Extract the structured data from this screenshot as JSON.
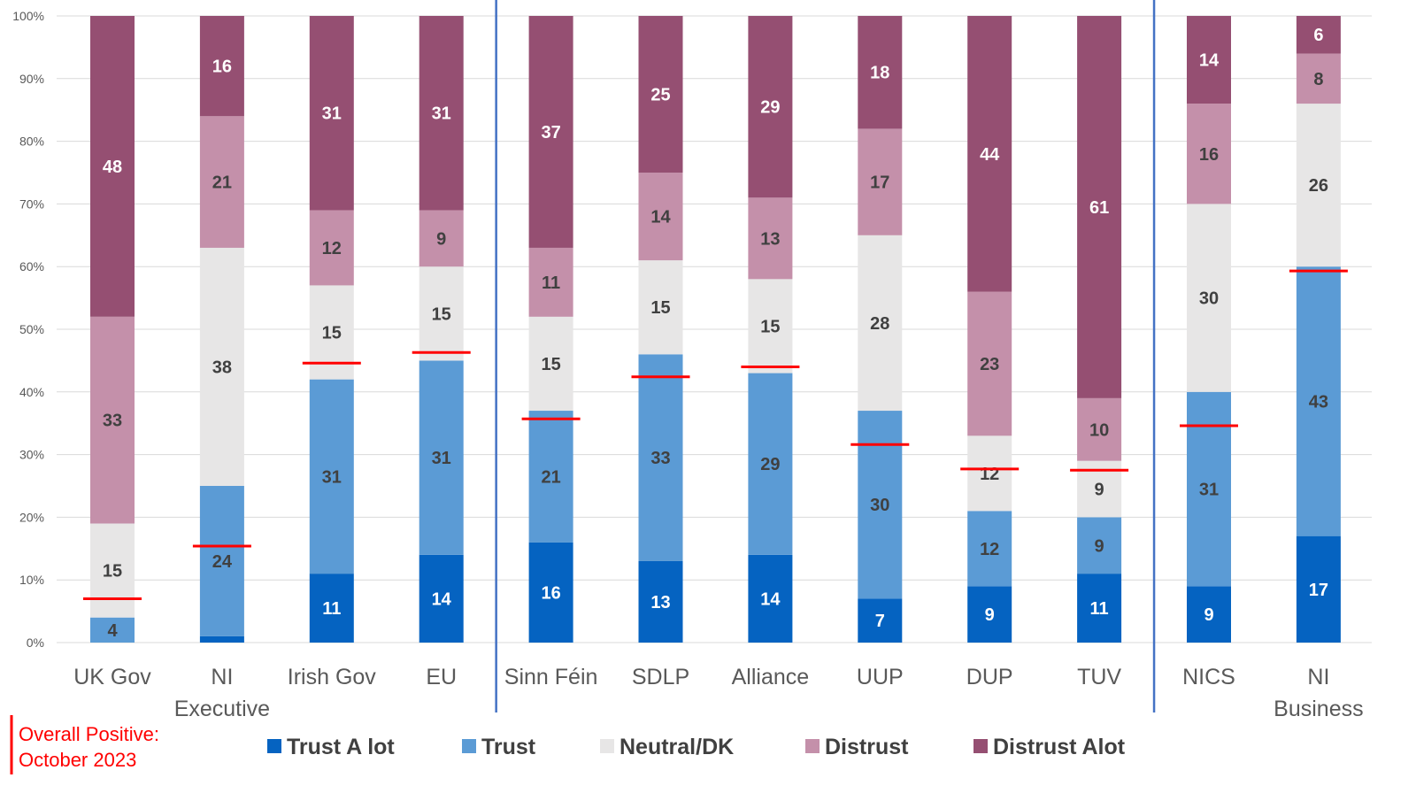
{
  "chart_data": {
    "type": "stacked-bar-100",
    "title": "",
    "ylabel": "",
    "xlabel": "",
    "ylim": [
      0,
      100
    ],
    "y_tick_labels": [
      "0%",
      "10%",
      "20%",
      "30%",
      "40%",
      "50%",
      "60%",
      "70%",
      "80%",
      "90%",
      "100%"
    ],
    "categories": [
      [
        "UK Gov"
      ],
      [
        "NI",
        "Executive"
      ],
      [
        "Irish Gov"
      ],
      [
        "EU"
      ],
      [
        "Sinn Féin"
      ],
      [
        "SDLP"
      ],
      [
        "Alliance"
      ],
      [
        "UUP"
      ],
      [
        "DUP"
      ],
      [
        "TUV"
      ],
      [
        "NICS"
      ],
      [
        "NI",
        "Business"
      ]
    ],
    "group_dividers_after_index": [
      3,
      9
    ],
    "series": [
      {
        "name": "Trust A lot",
        "color": "#0563c1",
        "label_color": "#ffffff",
        "values": [
          0,
          1,
          11,
          14,
          16,
          13,
          14,
          7,
          9,
          11,
          9,
          17
        ],
        "labels": [
          "",
          "",
          "11",
          "14",
          "16",
          "13",
          "14",
          "7",
          "9",
          "11",
          "9",
          "17"
        ]
      },
      {
        "name": "Trust",
        "color": "#5b9bd5",
        "label_color": "#404040",
        "values": [
          4,
          24,
          31,
          31,
          21,
          33,
          29,
          30,
          12,
          9,
          31,
          43
        ],
        "labels": [
          "4",
          "24",
          "31",
          "31",
          "21",
          "33",
          "29",
          "30",
          "12",
          "9",
          "31",
          "43"
        ]
      },
      {
        "name": "Neutral/DK",
        "color": "#e7e6e6",
        "label_color": "#404040",
        "values": [
          15,
          38,
          15,
          15,
          15,
          15,
          15,
          28,
          12,
          9,
          30,
          26
        ],
        "labels": [
          "15",
          "38",
          "15",
          "15",
          "15",
          "15",
          "15",
          "28",
          "12",
          "9",
          "30",
          "26"
        ]
      },
      {
        "name": "Distrust",
        "color": "#c490aa",
        "label_color": "#404040",
        "values": [
          33,
          21,
          12,
          9,
          11,
          14,
          13,
          17,
          23,
          10,
          16,
          8
        ],
        "labels": [
          "33",
          "21",
          "12",
          "9",
          "11",
          "14",
          "13",
          "17",
          "23",
          "10",
          "16",
          "8"
        ]
      },
      {
        "name": "Distrust Alot",
        "color": "#954f72",
        "label_color": "#ffffff",
        "values": [
          48,
          16,
          31,
          31,
          37,
          25,
          29,
          18,
          44,
          61,
          14,
          6
        ],
        "labels": [
          "48",
          "16",
          "31",
          "31",
          "37",
          "25",
          "29",
          "18",
          "44",
          "61",
          "14",
          "6"
        ]
      }
    ],
    "overall_positive": {
      "name": "Overall Positive: October 2023",
      "color": "#ff0000",
      "values": [
        7,
        15.4,
        44.6,
        46.3,
        35.7,
        42.4,
        44,
        31.6,
        27.7,
        27.5,
        34.6,
        59.3
      ]
    },
    "legend_position": "bottom"
  },
  "note": {
    "line1": "Overall Positive:",
    "line2": "October 2023"
  },
  "colors": {
    "grid": "#d9d9d9",
    "divider": "#4472c4",
    "axis_text": "#595959"
  }
}
